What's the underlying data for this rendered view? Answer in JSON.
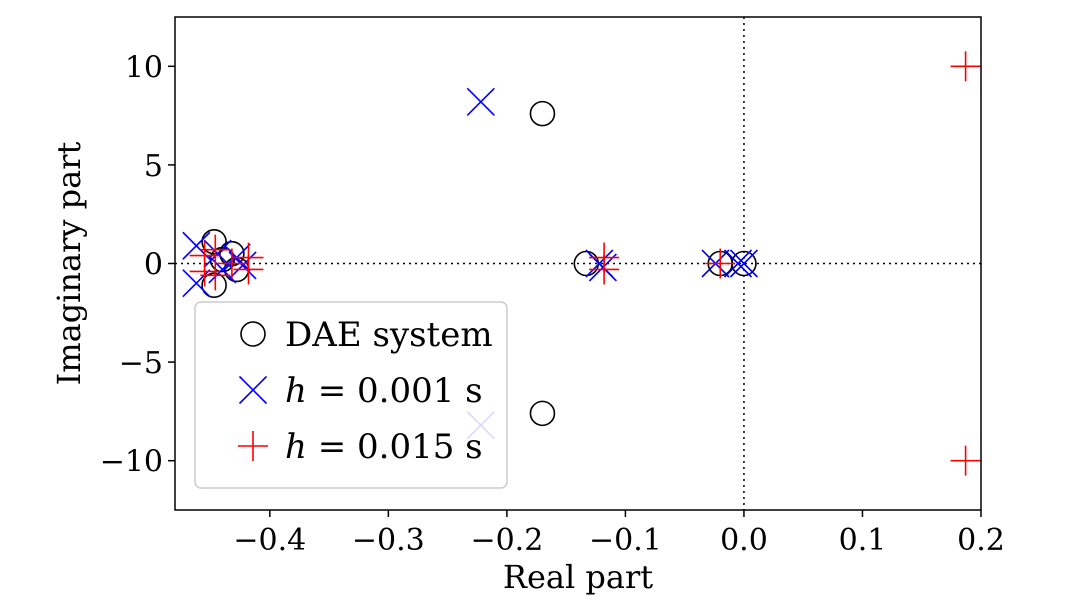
{
  "chart_data": {
    "type": "scatter",
    "xlabel": "Real part",
    "ylabel": "Imaginary part",
    "xlim": [
      -0.48,
      0.2
    ],
    "ylim": [
      -12.5,
      12.5
    ],
    "xticks": [
      -0.4,
      -0.3,
      -0.2,
      -0.1,
      0.0,
      0.1,
      0.2
    ],
    "xtick_labels": [
      "−0.4",
      "−0.3",
      "−0.2",
      "−0.1",
      "0.0",
      "0.1",
      "0.2"
    ],
    "yticks": [
      -10,
      -5,
      0,
      5,
      10
    ],
    "ytick_labels": [
      "−10",
      "−5",
      "0",
      "5",
      "10"
    ],
    "reference_lines": {
      "x": 0,
      "y": 0,
      "style": "dotted"
    },
    "grid": false,
    "legend_position": "lower-left",
    "series": [
      {
        "name": "DAE system",
        "marker": "circle",
        "color": "#000000",
        "points": [
          {
            "x": -0.17,
            "y": 7.6
          },
          {
            "x": -0.17,
            "y": -7.6
          },
          {
            "x": -0.133,
            "y": 0.0
          },
          {
            "x": -0.02,
            "y": 0.0
          },
          {
            "x": 0.0,
            "y": 0.0
          },
          {
            "x": -0.447,
            "y": 1.1
          },
          {
            "x": -0.447,
            "y": -1.1
          },
          {
            "x": -0.44,
            "y": 0.2
          },
          {
            "x": -0.432,
            "y": 0.5
          },
          {
            "x": -0.428,
            "y": -0.3
          }
        ]
      },
      {
        "name": "h = 0.001 s",
        "legend_math": "h",
        "legend_rest": " = 0.001 s",
        "marker": "x",
        "color": "#0000ff",
        "points": [
          {
            "x": -0.222,
            "y": 8.2
          },
          {
            "x": -0.222,
            "y": -8.2
          },
          {
            "x": -0.122,
            "y": 0.0
          },
          {
            "x": -0.119,
            "y": -0.2
          },
          {
            "x": -0.024,
            "y": 0.0
          },
          {
            "x": -0.005,
            "y": 0.0
          },
          {
            "x": 0.0,
            "y": 0.0
          },
          {
            "x": -0.462,
            "y": 0.9
          },
          {
            "x": -0.462,
            "y": -1.0
          },
          {
            "x": -0.444,
            "y": 0.5
          },
          {
            "x": -0.44,
            "y": -0.3
          },
          {
            "x": -0.428,
            "y": 0.3
          },
          {
            "x": -0.423,
            "y": -0.1
          }
        ]
      },
      {
        "name": "h = 0.015 s",
        "legend_math": "h",
        "legend_rest": " = 0.015 s",
        "marker": "plus",
        "color": "#ff0000",
        "points": [
          {
            "x": 0.187,
            "y": 10.0
          },
          {
            "x": 0.187,
            "y": -10.0
          },
          {
            "x": -0.118,
            "y": 0.3
          },
          {
            "x": -0.118,
            "y": -0.3
          },
          {
            "x": -0.02,
            "y": 0.0
          },
          {
            "x": -0.446,
            "y": 0.7
          },
          {
            "x": -0.446,
            "y": -0.6
          },
          {
            "x": -0.455,
            "y": 0.4
          },
          {
            "x": -0.455,
            "y": -0.4
          },
          {
            "x": -0.418,
            "y": 0.3
          },
          {
            "x": -0.418,
            "y": -0.3
          },
          {
            "x": -0.432,
            "y": 0.0
          }
        ]
      }
    ]
  }
}
